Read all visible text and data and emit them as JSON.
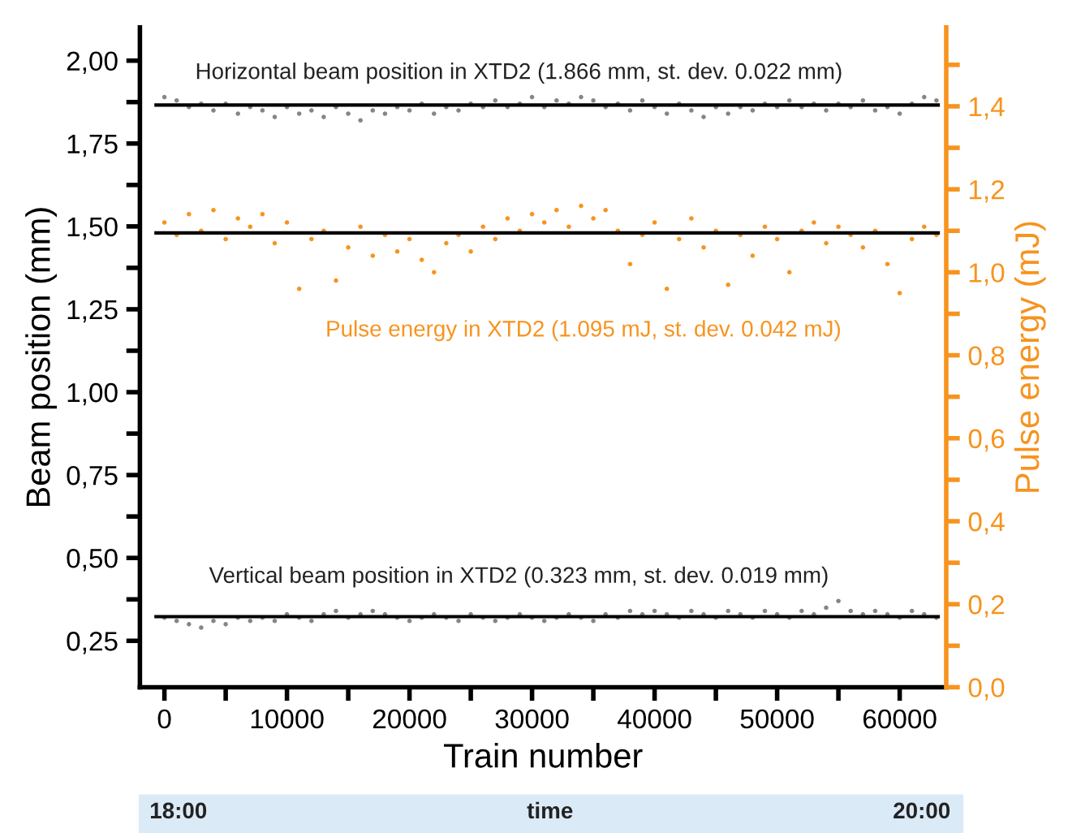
{
  "chart_data": {
    "type": "scatter",
    "xlabel": "Train number",
    "ylabel": "Beam position (mm)",
    "y2label": "Pulse energy (mJ)",
    "xlim": [
      -2000,
      63800
    ],
    "xticks": [
      0,
      {
        "value": 5000,
        "label": null
      },
      10000,
      {
        "value": 15000,
        "label": null
      },
      20000,
      {
        "value": 25000,
        "label": null
      },
      30000,
      {
        "value": 35000,
        "label": null
      },
      40000,
      {
        "value": 45000,
        "label": null
      },
      50000,
      {
        "value": 55000,
        "label": null
      },
      60000
    ],
    "ylim": [
      0.11,
      2.1
    ],
    "yticks": [
      {
        "value": 0.25,
        "label": "0,25"
      },
      {
        "value": 0.375,
        "label": null
      },
      {
        "value": 0.5,
        "label": "0,50"
      },
      {
        "value": 0.625,
        "label": null
      },
      {
        "value": 0.75,
        "label": "0,75"
      },
      {
        "value": 0.875,
        "label": null
      },
      {
        "value": 1.0,
        "label": "1,00"
      },
      {
        "value": 1.125,
        "label": null
      },
      {
        "value": 1.25,
        "label": "1,25"
      },
      {
        "value": 1.375,
        "label": null
      },
      {
        "value": 1.5,
        "label": "1,50"
      },
      {
        "value": 1.625,
        "label": null
      },
      {
        "value": 1.75,
        "label": "1,75"
      },
      {
        "value": 1.875,
        "label": null
      },
      {
        "value": 2.0,
        "label": "2,00"
      }
    ],
    "y2lim": [
      0,
      1.59
    ],
    "y2ticks": [
      {
        "value": 0,
        "label": "0,0"
      },
      {
        "value": 0.1,
        "label": null
      },
      {
        "value": 0.2,
        "label": "0,2"
      },
      {
        "value": 0.3,
        "label": null
      },
      {
        "value": 0.4,
        "label": "0,4"
      },
      {
        "value": 0.5,
        "label": null
      },
      {
        "value": 0.6,
        "label": "0,6"
      },
      {
        "value": 0.7,
        "label": null
      },
      {
        "value": 0.8,
        "label": "0,8"
      },
      {
        "value": 0.9,
        "label": null
      },
      {
        "value": 1.0,
        "label": "1,0"
      },
      {
        "value": 1.1,
        "label": null
      },
      {
        "value": 1.2,
        "label": "1,2"
      },
      {
        "value": 1.3,
        "label": null
      },
      {
        "value": 1.4,
        "label": "1,4"
      },
      {
        "value": 1.5,
        "label": null
      }
    ],
    "grid": false,
    "legend": false,
    "marker": "circle",
    "x": [
      0,
      1000,
      2000,
      3000,
      4000,
      5000,
      6000,
      7000,
      8000,
      9000,
      10000,
      11000,
      12000,
      13000,
      14000,
      15000,
      16000,
      17000,
      18000,
      19000,
      20000,
      21000,
      22000,
      23000,
      24000,
      25000,
      26000,
      27000,
      28000,
      29000,
      30000,
      31000,
      32000,
      33000,
      34000,
      35000,
      36000,
      37000,
      38000,
      39000,
      40000,
      41000,
      42000,
      43000,
      44000,
      45000,
      46000,
      47000,
      48000,
      49000,
      50000,
      51000,
      52000,
      53000,
      54000,
      55000,
      56000,
      57000,
      58000,
      59000,
      60000,
      61000,
      62000,
      63000
    ],
    "series": [
      {
        "name": "Horizontal beam position in XTD2 (1.866 mm, st. dev. 0.022 mm)",
        "color": "#858585",
        "values": [
          1.89,
          1.88,
          1.86,
          1.87,
          1.85,
          1.87,
          1.84,
          1.86,
          1.85,
          1.83,
          1.86,
          1.84,
          1.85,
          1.83,
          1.86,
          1.84,
          1.82,
          1.85,
          1.84,
          1.86,
          1.85,
          1.87,
          1.84,
          1.86,
          1.85,
          1.87,
          1.86,
          1.88,
          1.86,
          1.87,
          1.89,
          1.86,
          1.88,
          1.87,
          1.89,
          1.88,
          1.86,
          1.87,
          1.85,
          1.88,
          1.86,
          1.84,
          1.87,
          1.85,
          1.83,
          1.86,
          1.84,
          1.86,
          1.85,
          1.87,
          1.86,
          1.88,
          1.86,
          1.87,
          1.85,
          1.87,
          1.86,
          1.88,
          1.85,
          1.86,
          1.84,
          1.87,
          1.89,
          1.88
        ]
      },
      {
        "name": "Pulse energy in XTD2 (1.095 mJ, st. dev. 0.042 mJ)",
        "color": "#f7931e",
        "axis": "y2",
        "values": [
          1.12,
          1.09,
          1.14,
          1.1,
          1.15,
          1.08,
          1.13,
          1.11,
          1.14,
          1.07,
          1.12,
          0.96,
          1.08,
          1.1,
          0.98,
          1.06,
          1.11,
          1.04,
          1.09,
          1.05,
          1.08,
          1.03,
          1.0,
          1.07,
          1.09,
          1.05,
          1.11,
          1.08,
          1.13,
          1.1,
          1.14,
          1.12,
          1.15,
          1.11,
          1.16,
          1.13,
          1.15,
          1.1,
          1.02,
          1.09,
          1.12,
          0.96,
          1.08,
          1.13,
          1.06,
          1.1,
          0.97,
          1.09,
          1.04,
          1.11,
          1.08,
          1.0,
          1.1,
          1.12,
          1.07,
          1.11,
          1.09,
          1.06,
          1.1,
          1.02,
          0.95,
          1.08,
          1.11,
          1.09
        ]
      },
      {
        "name": "Vertical beam position in XTD2 (0.323 mm, st. dev. 0.019 mm)",
        "color": "#858585",
        "values": [
          0.32,
          0.31,
          0.3,
          0.29,
          0.31,
          0.3,
          0.32,
          0.31,
          0.32,
          0.31,
          0.33,
          0.32,
          0.31,
          0.33,
          0.34,
          0.32,
          0.33,
          0.34,
          0.33,
          0.32,
          0.31,
          0.32,
          0.33,
          0.32,
          0.31,
          0.33,
          0.32,
          0.31,
          0.32,
          0.33,
          0.32,
          0.31,
          0.32,
          0.33,
          0.32,
          0.31,
          0.33,
          0.32,
          0.34,
          0.33,
          0.34,
          0.33,
          0.32,
          0.34,
          0.33,
          0.32,
          0.34,
          0.33,
          0.32,
          0.34,
          0.33,
          0.32,
          0.34,
          0.33,
          0.35,
          0.37,
          0.34,
          0.33,
          0.34,
          0.33,
          0.32,
          0.34,
          0.33,
          0.32
        ]
      }
    ],
    "ref_lines": [
      {
        "axis": "y",
        "value": 1.866,
        "color": "#000000"
      },
      {
        "axis": "y2",
        "value": 1.095,
        "color": "#000000"
      },
      {
        "axis": "y",
        "value": 0.323,
        "color": "#000000"
      }
    ],
    "annotations": [
      "18:00",
      "time",
      "20:00"
    ]
  }
}
